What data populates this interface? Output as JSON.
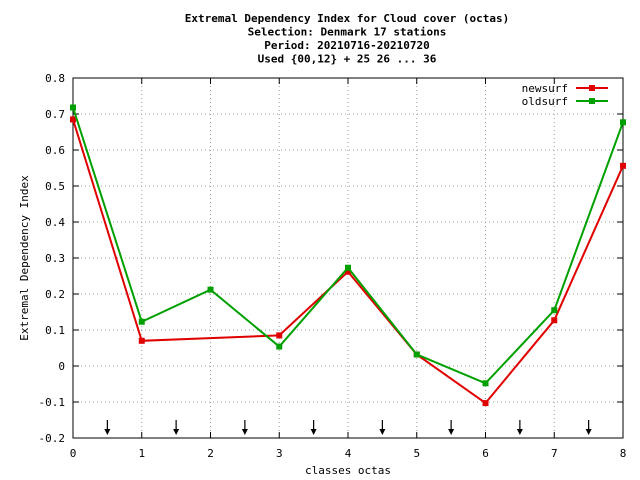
{
  "chart_data": {
    "type": "line",
    "title_lines": [
      "Extremal Dependency Index  for Cloud cover (octas)",
      "Selection: Denmark     17 stations",
      "Period: 20210716-20210720",
      "Used {00,12} + 25 26 ... 36"
    ],
    "xlabel": "classes octas",
    "ylabel": "Extremal Dependency Index",
    "xlim": [
      0,
      8
    ],
    "ylim": [
      -0.2,
      0.8
    ],
    "x_ticks": [
      "0",
      "1",
      "2",
      "3",
      "4",
      "5",
      "6",
      "7",
      "8"
    ],
    "y_ticks": [
      "-0.2",
      "-0.1",
      "0",
      "0.1",
      "0.2",
      "0.3",
      "0.4",
      "0.5",
      "0.6",
      "0.7",
      "0.8"
    ],
    "grid": true,
    "legend_position": "top-right",
    "arrows_x": [
      0.5,
      1.5,
      2.5,
      3.5,
      4.5,
      5.5,
      6.5,
      7.5
    ],
    "series": [
      {
        "name": "newsurf",
        "color": "#e00000",
        "x": [
          0,
          1,
          3,
          4,
          5,
          6,
          7,
          8
        ],
        "y": [
          0.685,
          0.07,
          0.085,
          0.262,
          0.032,
          -0.103,
          0.127,
          0.556
        ]
      },
      {
        "name": "oldsurf",
        "color": "#00a000",
        "x": [
          0,
          1,
          2,
          3,
          4,
          5,
          6,
          7,
          8
        ],
        "y": [
          0.718,
          0.123,
          0.212,
          0.054,
          0.273,
          0.032,
          -0.048,
          0.155,
          0.677
        ]
      }
    ]
  }
}
